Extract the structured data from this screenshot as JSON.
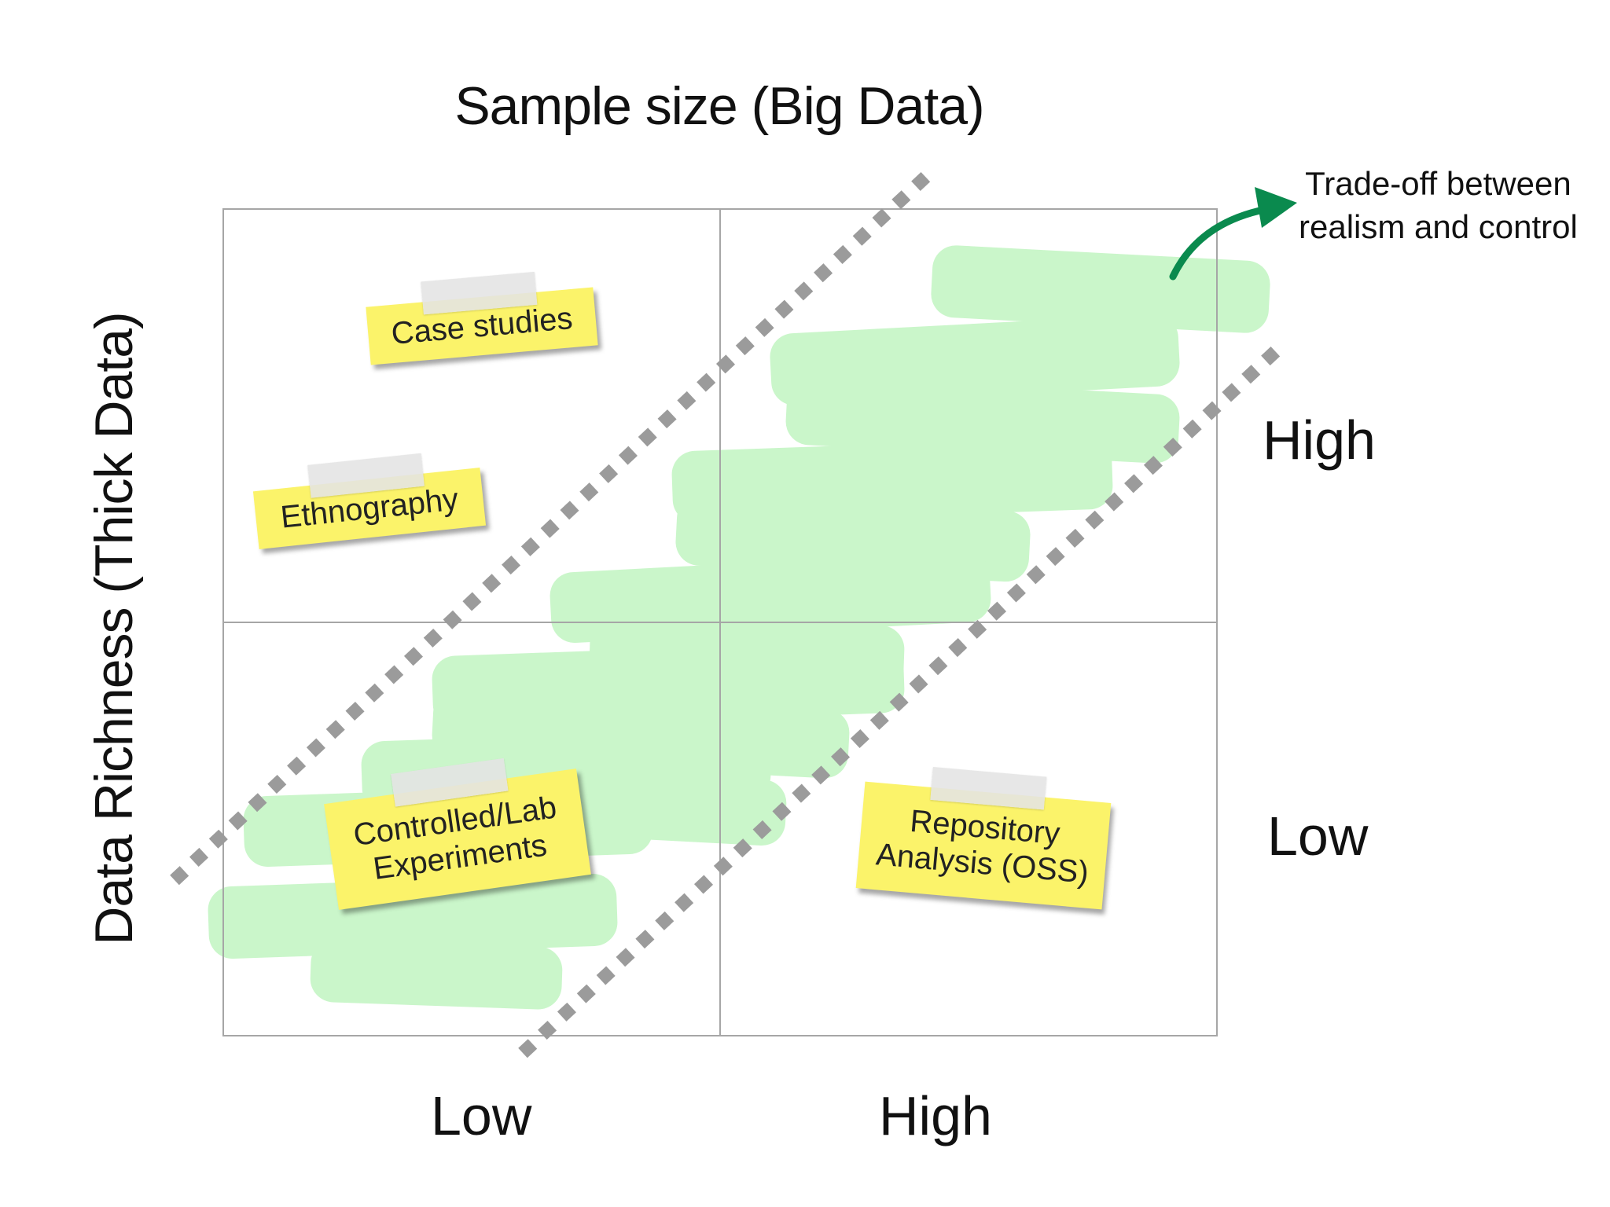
{
  "x_axis": {
    "title": "Sample size (Big Data)",
    "low_label": "Low",
    "high_label": "High"
  },
  "y_axis": {
    "title": "Data Richness (Thick Data)",
    "high_label": "High",
    "low_label": "Low"
  },
  "notes": {
    "case_studies": "Case studies",
    "ethnography": "Ethnography",
    "controlled_line1": "Controlled/Lab",
    "controlled_line2": "Experiments",
    "repository_line1": "Repository",
    "repository_line2": "Analysis (OSS)"
  },
  "tradeoff": {
    "line1": "Trade-off between",
    "line2": "realism and control"
  },
  "colors": {
    "grid": "#a6a6a6",
    "dotted_band": "#9b9b9b",
    "highlight": "#c6f5c6",
    "sticky_note": "#fbf36a",
    "arrow": "#0a8a4e"
  }
}
